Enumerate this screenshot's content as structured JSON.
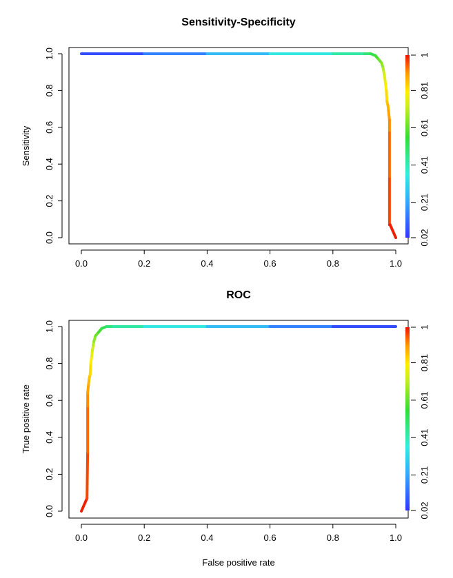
{
  "chart_data": [
    {
      "type": "line",
      "title": "Sensitivity-Specificity",
      "xlabel": "",
      "ylabel": "Sensitivity",
      "xlim": [
        0,
        1
      ],
      "ylim": [
        0,
        1
      ],
      "x_ticks": [
        "0.0",
        "0.2",
        "0.4",
        "0.6",
        "0.8",
        "1.0"
      ],
      "y_ticks": [
        "0.0",
        "0.2",
        "0.4",
        "0.6",
        "0.8",
        "1.0"
      ],
      "colorbar_ticks": [
        "0.02",
        "0.21",
        "0.41",
        "0.61",
        "0.81",
        "1"
      ],
      "colorbar_range": [
        0.02,
        1
      ],
      "color_scale": "rainbow (blue = low cutoff, red = high cutoff)",
      "grid": false,
      "legend": "colorbar right",
      "series": [
        {
          "x": [
            0.0,
            0.2,
            0.4,
            0.6,
            0.8,
            0.9,
            0.92,
            0.935,
            0.945,
            0.955,
            0.96,
            0.962,
            0.965,
            0.967,
            0.97,
            0.972,
            0.975,
            0.977,
            0.98,
            0.98,
            0.98,
            0.98,
            0.982,
            1.0
          ],
          "y": [
            1.0,
            1.0,
            1.0,
            1.0,
            1.0,
            1.0,
            1.0,
            0.99,
            0.97,
            0.95,
            0.92,
            0.9,
            0.87,
            0.84,
            0.8,
            0.74,
            0.72,
            0.69,
            0.64,
            0.57,
            0.32,
            0.07,
            0.07,
            0.0
          ],
          "cutoff": [
            0.02,
            0.1,
            0.2,
            0.3,
            0.4,
            0.46,
            0.5,
            0.55,
            0.6,
            0.64,
            0.68,
            0.72,
            0.75,
            0.78,
            0.81,
            0.84,
            0.86,
            0.88,
            0.9,
            0.92,
            0.95,
            0.97,
            0.98,
            1.0
          ]
        }
      ]
    },
    {
      "type": "line",
      "title": "ROC",
      "xlabel": "False positive rate",
      "ylabel": "True positive rate",
      "xlim": [
        0,
        1
      ],
      "ylim": [
        0,
        1
      ],
      "x_ticks": [
        "0.0",
        "0.2",
        "0.4",
        "0.6",
        "0.8",
        "1.0"
      ],
      "y_ticks": [
        "0.0",
        "0.2",
        "0.4",
        "0.6",
        "0.8",
        "1.0"
      ],
      "colorbar_ticks": [
        "0.02",
        "0.21",
        "0.41",
        "0.61",
        "0.81",
        "1"
      ],
      "colorbar_range": [
        0.02,
        1
      ],
      "color_scale": "rainbow (blue = low cutoff, red = high cutoff)",
      "grid": false,
      "legend": "colorbar right",
      "series": [
        {
          "x": [
            0.0,
            0.018,
            0.018,
            0.02,
            0.02,
            0.02,
            0.023,
            0.025,
            0.028,
            0.03,
            0.033,
            0.035,
            0.038,
            0.04,
            0.045,
            0.055,
            0.065,
            0.08,
            0.1,
            0.2,
            0.4,
            0.6,
            0.8,
            1.0
          ],
          "y": [
            0.0,
            0.07,
            0.07,
            0.32,
            0.57,
            0.64,
            0.69,
            0.72,
            0.74,
            0.8,
            0.84,
            0.87,
            0.9,
            0.92,
            0.95,
            0.97,
            0.99,
            1.0,
            1.0,
            1.0,
            1.0,
            1.0,
            1.0,
            1.0
          ],
          "cutoff": [
            1.0,
            0.98,
            0.97,
            0.95,
            0.92,
            0.9,
            0.88,
            0.86,
            0.84,
            0.81,
            0.78,
            0.75,
            0.72,
            0.68,
            0.64,
            0.6,
            0.55,
            0.5,
            0.46,
            0.4,
            0.3,
            0.2,
            0.1,
            0.02
          ]
        }
      ]
    }
  ]
}
